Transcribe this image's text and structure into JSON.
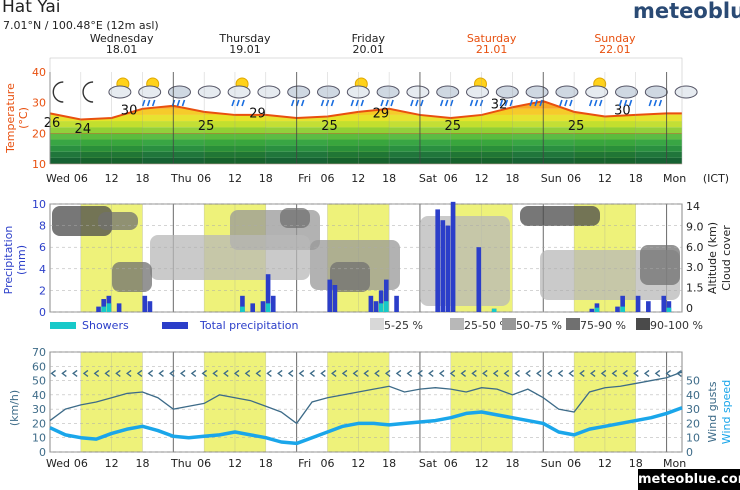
{
  "location": {
    "name": "Hat Yai",
    "coords": "7.01°N / 100.48°E (12m asl)"
  },
  "brand": "meteoblue",
  "footer_brand": "meteoblue.com",
  "timezone_label": "(ICT)",
  "days": [
    {
      "name": "Wednesday",
      "date": "18.01",
      "weekend": false
    },
    {
      "name": "Thursday",
      "date": "19.01",
      "weekend": false
    },
    {
      "name": "Friday",
      "date": "20.01",
      "weekend": false
    },
    {
      "name": "Saturday",
      "date": "21.01",
      "weekend": true
    },
    {
      "name": "Sunday",
      "date": "22.01",
      "weekend": true
    }
  ],
  "hour_ticks": [
    "Wed",
    "06",
    "12",
    "18",
    "Thu",
    "06",
    "12",
    "18",
    "Fri",
    "06",
    "12",
    "18",
    "Sat",
    "06",
    "12",
    "18",
    "Sun",
    "06",
    "12",
    "18",
    "Mon"
  ],
  "colors": {
    "weekend": "#e8500f",
    "temperature": "#e8500f",
    "precip": "#2b3ec9",
    "showers": "#17c9c9",
    "wind": "#3d6b88",
    "wind_speed": "#1aa6ea",
    "daylight": "#eef27a"
  },
  "chart_data": [
    {
      "type": "area",
      "ylabel": "Temperature (°C)",
      "ylim": [
        10,
        40
      ],
      "yticks": [
        10,
        20,
        30,
        40
      ],
      "x_hours": [
        0,
        6,
        12,
        18,
        24,
        30,
        36,
        42,
        48,
        54,
        60,
        66,
        72,
        78,
        84,
        90,
        96,
        102,
        108,
        114,
        120
      ],
      "series": [
        {
          "values": [
            26.5,
            24.5,
            25,
            28,
            29,
            27,
            26,
            26,
            25,
            25.5,
            27,
            28,
            26,
            25,
            26,
            28.5,
            30.5,
            27,
            25.5,
            26,
            26.5
          ]
        }
      ],
      "data_labels": [
        {
          "hour": 0,
          "value": "26"
        },
        {
          "hour": 6,
          "value": "24"
        },
        {
          "hour": 15,
          "value": "30"
        },
        {
          "hour": 30,
          "value": "25"
        },
        {
          "hour": 40,
          "value": "29"
        },
        {
          "hour": 54,
          "value": "25"
        },
        {
          "hour": 64,
          "value": "29"
        },
        {
          "hour": 78,
          "value": "25"
        },
        {
          "hour": 87,
          "value": "32"
        },
        {
          "hour": 102,
          "value": "25"
        },
        {
          "hour": 111,
          "value": "30"
        }
      ],
      "weather_icons": [
        "moon-icon",
        "moon-icon",
        "partly-cloudy-icon",
        "rain-sun-icon",
        "storm-icon",
        "cloud-icon",
        "rain-sun-icon",
        "cloud-icon",
        "storm-icon",
        "storm-icon",
        "rain-sun-icon",
        "storm-icon",
        "rain-icon",
        "storm-icon",
        "rain-sun-icon",
        "storm-icon",
        "storm-icon",
        "storm-icon",
        "rain-sun-icon",
        "storm-icon",
        "storm-icon",
        "cloud-icon"
      ]
    },
    {
      "type": "bar",
      "ylabel": "Precipitation (mm)",
      "ylabel_right": "Altitude (km) Cloud cover",
      "ylim": [
        0,
        10
      ],
      "yticks": [
        0,
        2,
        4,
        6,
        8,
        10
      ],
      "yticks_right": [
        "14",
        "9.0",
        "6.0",
        "3.0",
        "1.5",
        "0"
      ],
      "legend": [
        {
          "label": "Showers",
          "color": "#17c9c9"
        },
        {
          "label": "Total precipitation",
          "color": "#2b3ec9"
        },
        {
          "label": "5-25 %",
          "color": "#d8d8d8"
        },
        {
          "label": "25-50 %",
          "color": "#b8b8b8"
        },
        {
          "label": "50-75 %",
          "color": "#989898"
        },
        {
          "label": "75-90 %",
          "color": "#707070"
        },
        {
          "label": "90-100 %",
          "color": "#4a4a4a"
        }
      ],
      "total": [
        {
          "hour": 9,
          "value": 0.5
        },
        {
          "hour": 10,
          "value": 1.2
        },
        {
          "hour": 11,
          "value": 1.5
        },
        {
          "hour": 13,
          "value": 0.8
        },
        {
          "hour": 18,
          "value": 1.5
        },
        {
          "hour": 19,
          "value": 1.0
        },
        {
          "hour": 37,
          "value": 1.5
        },
        {
          "hour": 39,
          "value": 0.8
        },
        {
          "hour": 41,
          "value": 1.0
        },
        {
          "hour": 42,
          "value": 3.5
        },
        {
          "hour": 43,
          "value": 1.5
        },
        {
          "hour": 54,
          "value": 3.0
        },
        {
          "hour": 55,
          "value": 2.5
        },
        {
          "hour": 62,
          "value": 1.5
        },
        {
          "hour": 63,
          "value": 1.0
        },
        {
          "hour": 64,
          "value": 2.0
        },
        {
          "hour": 65,
          "value": 3.0
        },
        {
          "hour": 67,
          "value": 1.5
        },
        {
          "hour": 75,
          "value": 9.5
        },
        {
          "hour": 76,
          "value": 8.5
        },
        {
          "hour": 77,
          "value": 8.0
        },
        {
          "hour": 78,
          "value": 10.5
        },
        {
          "hour": 83,
          "value": 6.0
        },
        {
          "hour": 86,
          "value": 0.3
        },
        {
          "hour": 105,
          "value": 0.3
        },
        {
          "hour": 106,
          "value": 0.8
        },
        {
          "hour": 110,
          "value": 0.5
        },
        {
          "hour": 111,
          "value": 1.5
        },
        {
          "hour": 114,
          "value": 1.5
        },
        {
          "hour": 116,
          "value": 1.0
        },
        {
          "hour": 119,
          "value": 1.5
        },
        {
          "hour": 120,
          "value": 1.0
        }
      ],
      "showers": [
        {
          "hour": 10,
          "value": 0.5
        },
        {
          "hour": 11,
          "value": 0.8
        },
        {
          "hour": 37,
          "value": 0.5
        },
        {
          "hour": 42,
          "value": 0.8
        },
        {
          "hour": 64,
          "value": 0.8
        },
        {
          "hour": 65,
          "value": 1.0
        },
        {
          "hour": 86,
          "value": 0.3
        },
        {
          "hour": 106,
          "value": 0.4
        },
        {
          "hour": 111,
          "value": 0.5
        },
        {
          "hour": 120,
          "value": 0.4
        }
      ]
    },
    {
      "type": "line",
      "ylabel": "(km/h)",
      "ylabel_right": "Wind gusts Wind speed",
      "ylim": [
        0,
        70
      ],
      "yticks": [
        0,
        10,
        20,
        30,
        40,
        50,
        60,
        70
      ],
      "x_hours": [
        0,
        3,
        6,
        9,
        12,
        15,
        18,
        21,
        24,
        27,
        30,
        33,
        36,
        39,
        42,
        45,
        48,
        51,
        54,
        57,
        60,
        63,
        66,
        69,
        72,
        75,
        78,
        81,
        84,
        87,
        90,
        93,
        96,
        99,
        102,
        105,
        108,
        111,
        114,
        117,
        120,
        123
      ],
      "series": [
        {
          "name": "Wind gusts",
          "values": [
            22,
            30,
            33,
            35,
            38,
            41,
            42,
            38,
            30,
            32,
            34,
            40,
            38,
            36,
            32,
            28,
            20,
            35,
            38,
            40,
            42,
            44,
            46,
            42,
            44,
            45,
            44,
            42,
            45,
            44,
            40,
            44,
            38,
            30,
            28,
            42,
            45,
            46,
            48,
            50,
            52,
            56
          ]
        },
        {
          "name": "Wind speed",
          "values": [
            17,
            12,
            10,
            9,
            13,
            16,
            18,
            15,
            11,
            10,
            11,
            12,
            14,
            12,
            10,
            7,
            6,
            10,
            14,
            18,
            20,
            20,
            19,
            20,
            21,
            22,
            24,
            27,
            28,
            26,
            24,
            22,
            20,
            14,
            12,
            16,
            18,
            20,
            22,
            24,
            27,
            31
          ]
        }
      ],
      "direction_level": 55
    }
  ]
}
